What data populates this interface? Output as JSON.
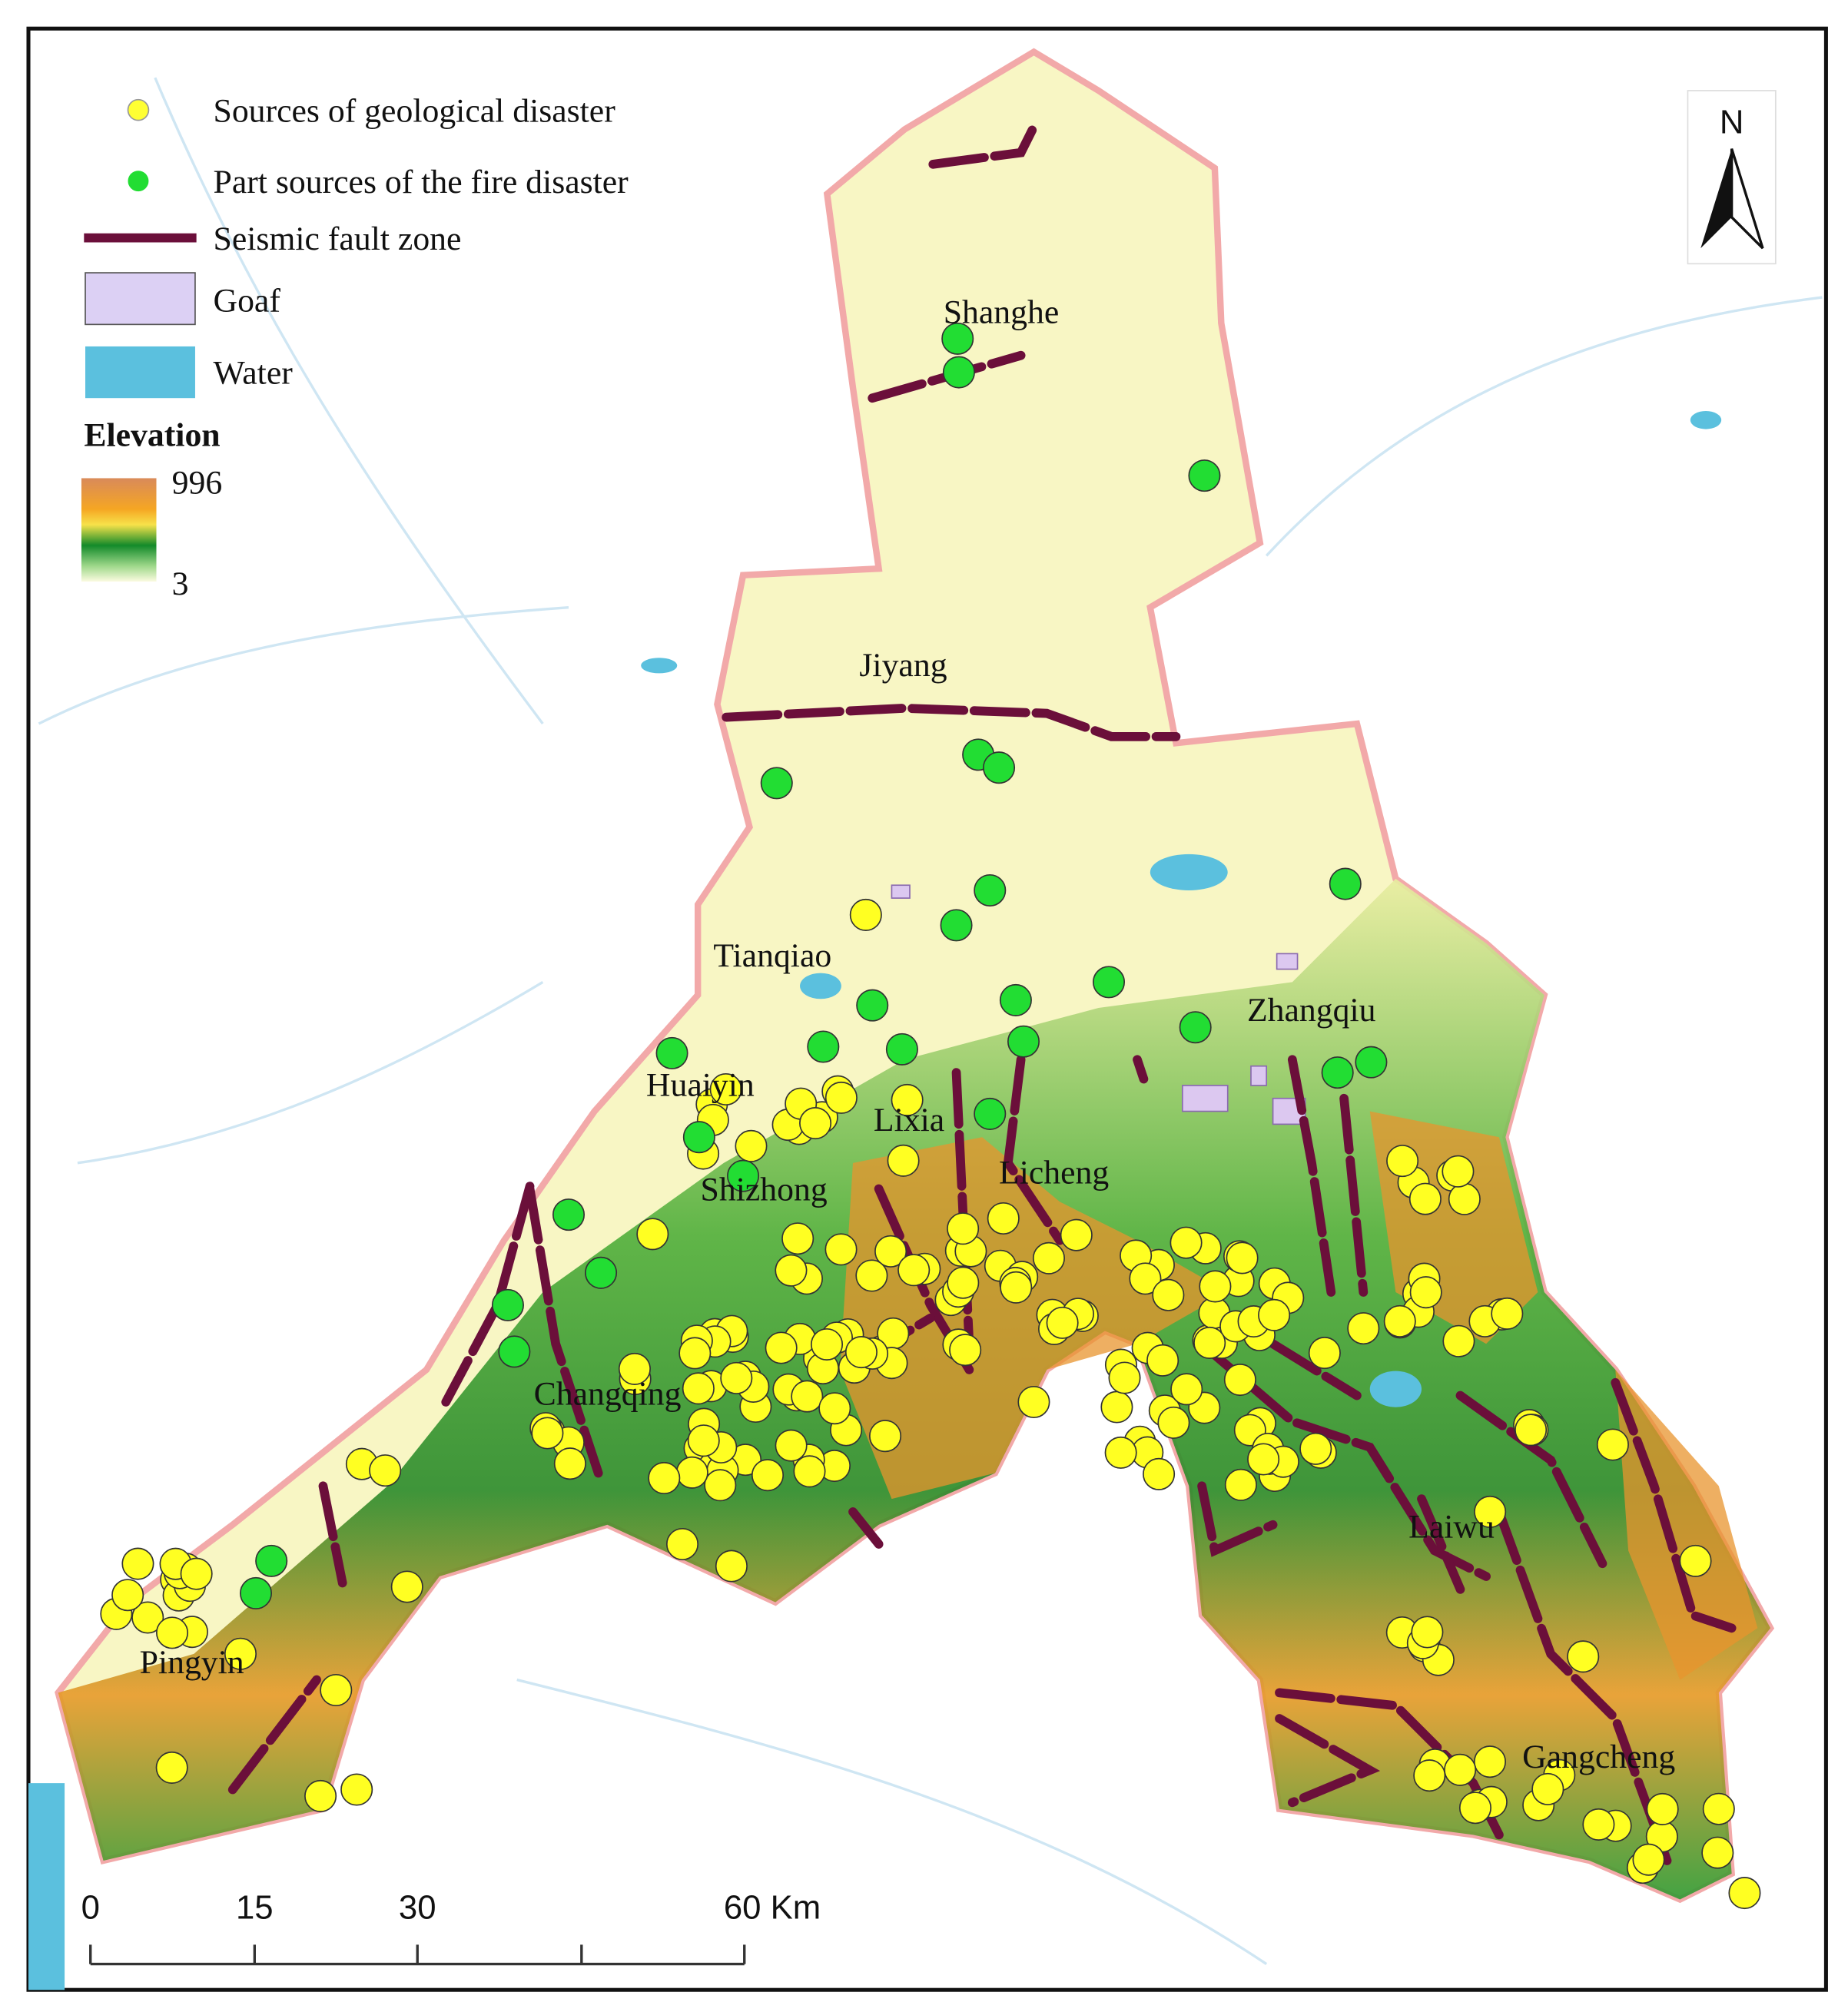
{
  "legend": {
    "items": [
      "Sources of geological disaster",
      "Part sources of the fire disaster",
      "Seismic fault zone",
      "Goaf",
      "Water"
    ],
    "elevation": {
      "title": "Elevation",
      "max": "996",
      "min": "3"
    }
  },
  "places": [
    "Shanghe",
    "Jiyang",
    "Tianqiao",
    "Zhangqiu",
    "Huaiyin",
    "Lixia",
    "Licheng",
    "Shizhong",
    "Changqing",
    "Laiwu",
    "Pingyin",
    "Gangcheng"
  ],
  "north": "N",
  "scale_bar": {
    "labels": [
      "0",
      "15",
      "30",
      "60 Km"
    ]
  }
}
